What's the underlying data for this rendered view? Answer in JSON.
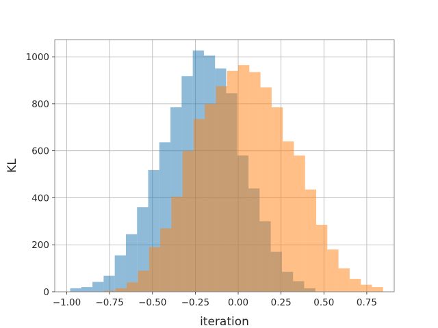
{
  "chart_data": {
    "type": "histogram",
    "xlabel": "iteration",
    "ylabel": "KL",
    "xlim": [
      -1.07,
      0.91
    ],
    "ylim": [
      0,
      1073
    ],
    "xticks": [
      -1.0,
      -0.75,
      -0.5,
      -0.25,
      0.0,
      0.25,
      0.5,
      0.75
    ],
    "xtick_labels": [
      "−1.00",
      "−0.75",
      "−0.50",
      "−0.25",
      "0.00",
      "0.25",
      "0.50",
      "0.75"
    ],
    "yticks": [
      0,
      200,
      400,
      600,
      800,
      1000
    ],
    "ytick_labels": [
      "0",
      "200",
      "400",
      "600",
      "800",
      "1000"
    ],
    "grid": true,
    "series": [
      {
        "color": "#1f77b4",
        "alpha": 0.5,
        "bins": [
          [
            -0.98,
            -0.915,
            15
          ],
          [
            -0.915,
            -0.85,
            20
          ],
          [
            -0.85,
            -0.785,
            42
          ],
          [
            -0.785,
            -0.72,
            68
          ],
          [
            -0.72,
            -0.655,
            155
          ],
          [
            -0.655,
            -0.59,
            245
          ],
          [
            -0.59,
            -0.525,
            360
          ],
          [
            -0.525,
            -0.46,
            518
          ],
          [
            -0.46,
            -0.395,
            636
          ],
          [
            -0.395,
            -0.33,
            785
          ],
          [
            -0.33,
            -0.265,
            918
          ],
          [
            -0.265,
            -0.2,
            1027
          ],
          [
            -0.2,
            -0.135,
            1005
          ],
          [
            -0.135,
            -0.07,
            950
          ],
          [
            -0.07,
            -0.005,
            845
          ],
          [
            -0.005,
            0.06,
            580
          ],
          [
            0.06,
            0.125,
            440
          ],
          [
            0.125,
            0.19,
            300
          ],
          [
            0.19,
            0.255,
            170
          ],
          [
            0.255,
            0.32,
            85
          ],
          [
            0.32,
            0.385,
            45
          ],
          [
            0.385,
            0.45,
            15
          ]
        ]
      },
      {
        "color": "#ff7f0e",
        "alpha": 0.5,
        "bins": [
          [
            -0.78,
            -0.715,
            5
          ],
          [
            -0.715,
            -0.65,
            15
          ],
          [
            -0.65,
            -0.585,
            40
          ],
          [
            -0.585,
            -0.52,
            90
          ],
          [
            -0.52,
            -0.455,
            190
          ],
          [
            -0.455,
            -0.39,
            270
          ],
          [
            -0.39,
            -0.325,
            405
          ],
          [
            -0.325,
            -0.26,
            600
          ],
          [
            -0.26,
            -0.195,
            735
          ],
          [
            -0.195,
            -0.13,
            800
          ],
          [
            -0.13,
            -0.065,
            875
          ],
          [
            -0.065,
            0.0,
            940
          ],
          [
            0.0,
            0.065,
            965
          ],
          [
            0.065,
            0.13,
            935
          ],
          [
            0.13,
            0.195,
            870
          ],
          [
            0.195,
            0.26,
            785
          ],
          [
            0.26,
            0.325,
            640
          ],
          [
            0.325,
            0.39,
            580
          ],
          [
            0.39,
            0.455,
            435
          ],
          [
            0.455,
            0.52,
            285
          ],
          [
            0.52,
            0.585,
            180
          ],
          [
            0.585,
            0.65,
            100
          ],
          [
            0.65,
            0.715,
            55
          ],
          [
            0.715,
            0.78,
            30
          ],
          [
            0.78,
            0.845,
            20
          ]
        ]
      }
    ]
  }
}
